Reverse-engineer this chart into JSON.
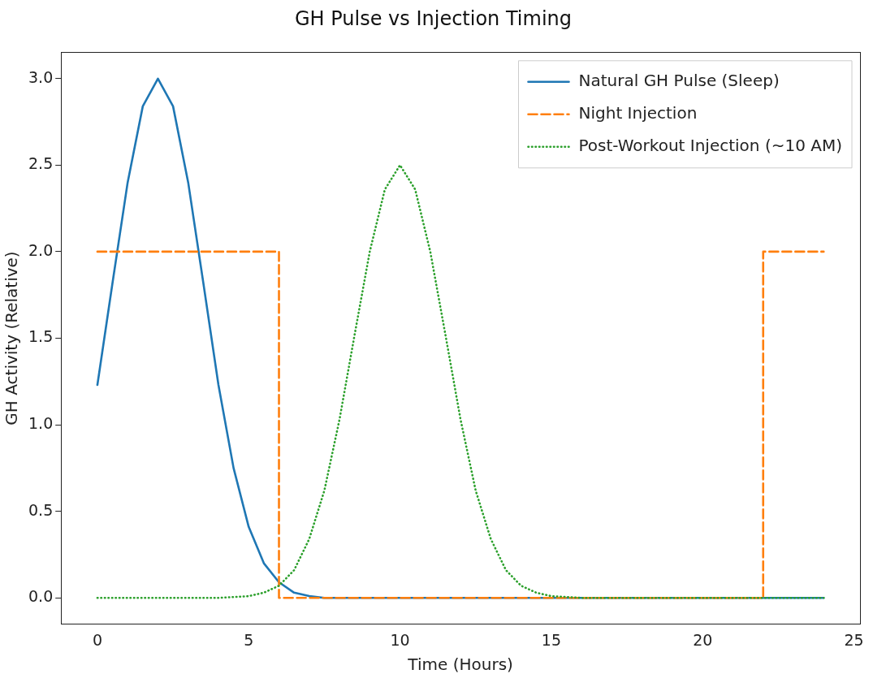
{
  "chart_data": {
    "type": "line",
    "title": "GH Pulse vs Injection Timing",
    "xlabel": "Time (Hours)",
    "ylabel": "GH Activity (Relative)",
    "xlim": [
      -1.2,
      25.2
    ],
    "xticks": [
      0,
      5,
      10,
      15,
      20,
      25
    ],
    "ylim": [
      -0.15,
      3.15
    ],
    "yticks": [
      {
        "value": 0,
        "label": "0.0"
      },
      0.5,
      {
        "value": 1,
        "label": "1.0"
      },
      1.5,
      {
        "value": 2,
        "label": "2.0"
      },
      2.5,
      {
        "value": 3,
        "label": "3.0"
      }
    ],
    "grid": false,
    "legend": "top right",
    "marker": "none",
    "series": [
      {
        "name": "Natural GH Pulse (Sleep)",
        "color": "#1f77b4",
        "line_style": "solid",
        "x": [
          0,
          0.5,
          1,
          1.5,
          2,
          2.5,
          3,
          3.5,
          4,
          4.5,
          5,
          5.5,
          6,
          6.5,
          7,
          7.5,
          8,
          24
        ],
        "values": [
          1.23,
          1.82,
          2.4,
          2.84,
          3.0,
          2.84,
          2.4,
          1.82,
          1.23,
          0.75,
          0.41,
          0.2,
          0.09,
          0.03,
          0.01,
          0,
          0,
          0
        ]
      },
      {
        "name": "Night Injection",
        "color": "#ff7f0e",
        "line_style": "dashed",
        "x": [
          0,
          6,
          6,
          22,
          22,
          24
        ],
        "values": [
          2,
          2,
          0,
          0,
          2,
          2
        ]
      },
      {
        "name": "Post-Workout Injection (~10 AM)",
        "color": "#2ca02c",
        "line_style": "dotted",
        "x": [
          0,
          4,
          5,
          5.5,
          6,
          6.5,
          7,
          7.5,
          8,
          8.5,
          9,
          9.5,
          10,
          10.5,
          11,
          11.5,
          12,
          12.5,
          13,
          13.5,
          14,
          14.5,
          15,
          16,
          24
        ],
        "values": [
          0,
          0,
          0.01,
          0.03,
          0.07,
          0.16,
          0.34,
          0.62,
          1.03,
          1.52,
          2.0,
          2.36,
          2.5,
          2.36,
          2.0,
          1.52,
          1.03,
          0.62,
          0.34,
          0.16,
          0.07,
          0.03,
          0.01,
          0,
          0
        ]
      }
    ]
  }
}
